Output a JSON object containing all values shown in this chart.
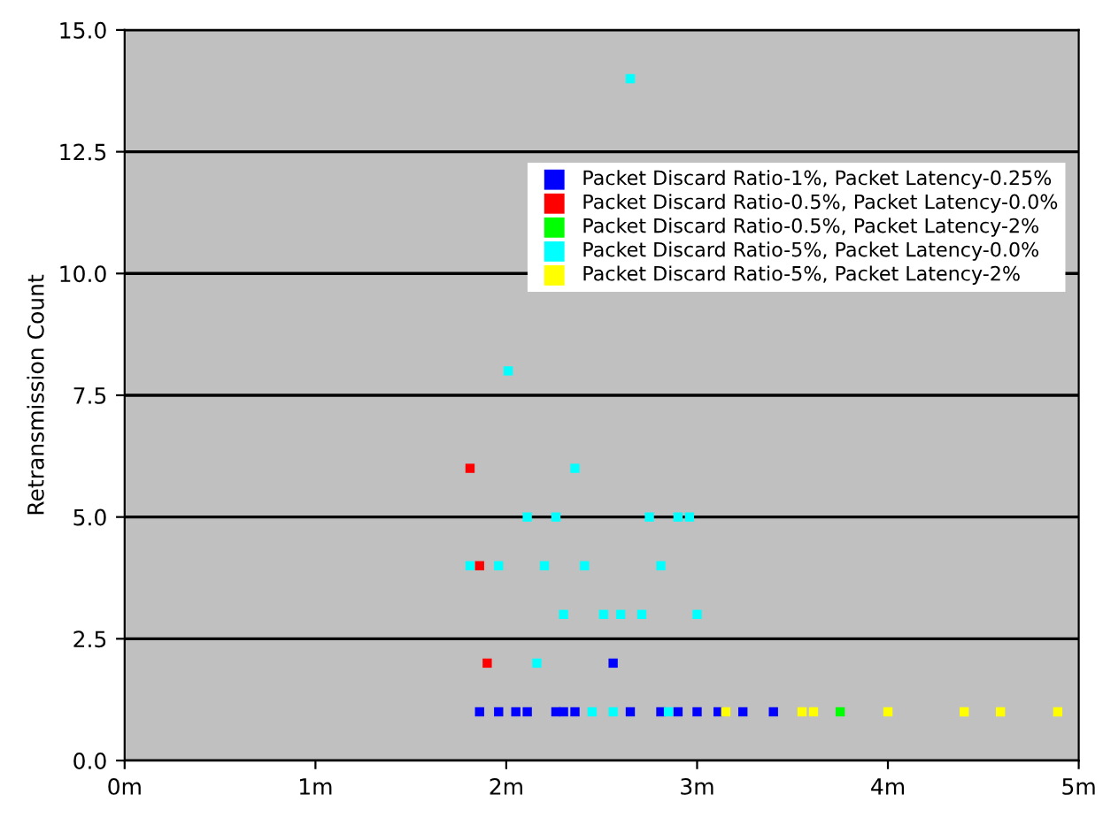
{
  "chart_data": {
    "type": "scatter",
    "ylabel": "Retransmission Count",
    "xlim": [
      0,
      5
    ],
    "xticks": [
      {
        "value": 0,
        "label": "0m"
      },
      {
        "value": 1,
        "label": "1m"
      },
      {
        "value": 2,
        "label": "2m"
      },
      {
        "value": 3,
        "label": "3m"
      },
      {
        "value": 4,
        "label": "4m"
      },
      {
        "value": 5,
        "label": "5m"
      }
    ],
    "ylim": [
      0,
      15
    ],
    "yticks": [
      {
        "value": 0,
        "label": "0.0"
      },
      {
        "value": 2.5,
        "label": "2.5"
      },
      {
        "value": 5,
        "label": "5.0"
      },
      {
        "value": 7.5,
        "label": "7.5"
      },
      {
        "value": 10,
        "label": "10.0"
      },
      {
        "value": 12.5,
        "label": "12.5"
      },
      {
        "value": 15,
        "label": "15.0"
      }
    ],
    "grid": "y",
    "legend": "top right",
    "marker": "square",
    "series": [
      {
        "name": "Packet Discard Ratio-1%, Packet Latency-0.25%",
        "color": "#0000ff",
        "x": [
          2.56,
          1.86,
          1.96,
          2.05,
          2.11,
          2.26,
          2.3,
          2.36,
          2.65,
          2.81,
          2.9,
          3.0,
          3.11,
          3.24,
          3.4
        ],
        "values": [
          2,
          1,
          1,
          1,
          1,
          1,
          1,
          1,
          1,
          1,
          1,
          1,
          1,
          1,
          1
        ]
      },
      {
        "name": "Packet Discard Ratio-0.5%, Packet Latency-0.0%",
        "color": "#ff0000",
        "x": [
          1.81,
          1.86,
          1.9
        ],
        "values": [
          6,
          4,
          2
        ]
      },
      {
        "name": "Packet Discard Ratio-0.5%, Packet Latency-2%",
        "color": "#00ff00",
        "x": [
          3.75
        ],
        "values": [
          1
        ]
      },
      {
        "name": "Packet Discard Ratio-5%, Packet Latency-0.0%",
        "color": "#00ffff",
        "x": [
          2.65,
          2.01,
          2.36,
          2.11,
          2.26,
          2.75,
          2.9,
          2.96,
          1.81,
          1.96,
          2.2,
          2.41,
          2.81,
          2.3,
          2.51,
          2.6,
          2.71,
          3.0,
          2.16,
          2.45,
          2.56,
          2.85
        ],
        "values": [
          14,
          8,
          6,
          5,
          5,
          5,
          5,
          5,
          4,
          4,
          4,
          4,
          4,
          3,
          3,
          3,
          3,
          3,
          2,
          1,
          1,
          1
        ]
      },
      {
        "name": "Packet Discard Ratio-5%, Packet Latency-2%",
        "color": "#ffff00",
        "x": [
          3.15,
          3.55,
          3.61,
          4.0,
          4.4,
          4.59,
          4.89
        ],
        "values": [
          1,
          1,
          1,
          1,
          1,
          1,
          1
        ]
      }
    ]
  }
}
